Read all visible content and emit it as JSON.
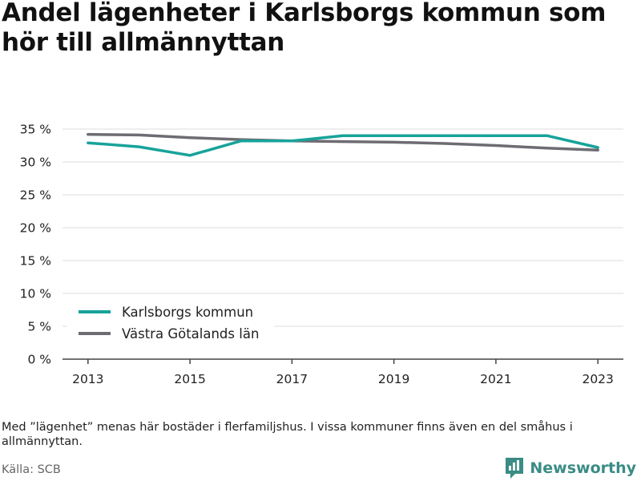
{
  "title": "Andel lägenheter i Karlsborgs kommun som hör till allmännyttan",
  "note": "Med ”lägenhet” menas här bostäder i flerfamiljshus. I vissa kommuner finns även en del småhus i allmännyttan.",
  "source": "Källa: SCB",
  "brand": {
    "name": "Newsworthy",
    "icon": "newsworthy-logo-icon"
  },
  "colors": {
    "karlsborg": "#17a39a",
    "vastra_gotaland": "#6e6c73",
    "grid": "#dddddd",
    "axis": "#444444"
  },
  "chart_data": {
    "type": "line",
    "title": "Andel lägenheter i Karlsborgs kommun som hör till allmännyttan",
    "x": [
      2013,
      2014,
      2015,
      2016,
      2017,
      2018,
      2019,
      2020,
      2021,
      2022,
      2023
    ],
    "x_ticks": [
      "2013",
      "2015",
      "2017",
      "2019",
      "2021",
      "2023"
    ],
    "y_ticks": [
      "0 %",
      "5 %",
      "10 %",
      "15 %",
      "20 %",
      "25 %",
      "30 %",
      "35 %"
    ],
    "ylim": [
      0,
      35
    ],
    "grid": true,
    "legend_position": "bottom-left",
    "series": [
      {
        "name": "Karlsborgs kommun",
        "color": "#17a39a",
        "values": [
          32.9,
          32.3,
          31.0,
          33.2,
          33.2,
          34.0,
          34.0,
          34.0,
          34.0,
          34.0,
          32.2
        ]
      },
      {
        "name": "Västra Götalands län",
        "color": "#6e6c73",
        "values": [
          34.2,
          34.1,
          33.7,
          33.4,
          33.2,
          33.1,
          33.0,
          32.8,
          32.5,
          32.1,
          31.8
        ]
      }
    ]
  }
}
